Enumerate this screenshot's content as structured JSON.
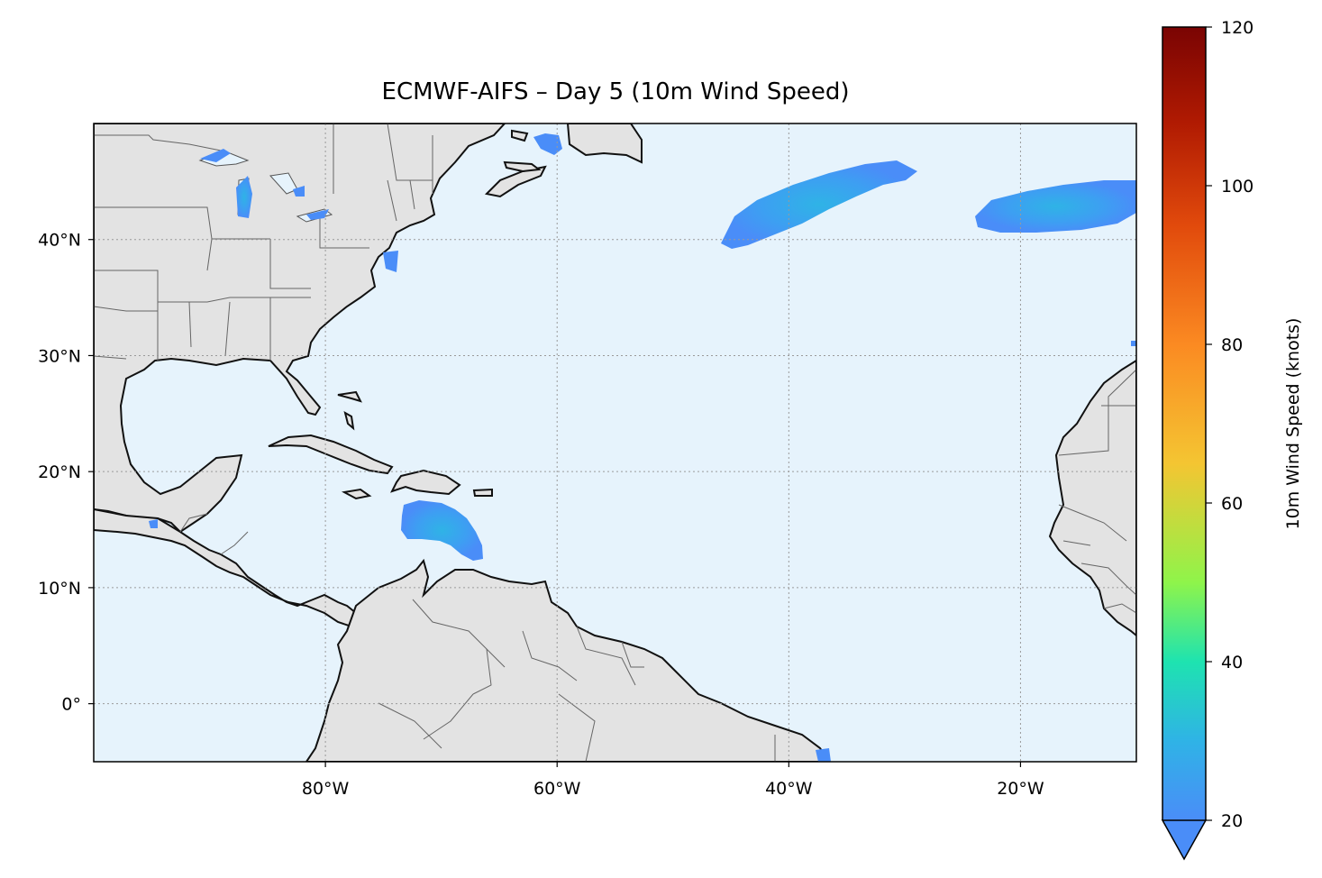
{
  "title": "ECMWF-AIFS – Day 5 (10m Wind Speed)",
  "map": {
    "lon_range": [
      -100,
      -10
    ],
    "lat_range": [
      -5,
      50
    ],
    "lon_ticks": [
      {
        "value": -80,
        "label": "80°W"
      },
      {
        "value": -60,
        "label": "60°W"
      },
      {
        "value": -40,
        "label": "40°W"
      },
      {
        "value": -20,
        "label": "20°W"
      }
    ],
    "lat_ticks": [
      {
        "value": 40,
        "label": "40°N"
      },
      {
        "value": 30,
        "label": "30°N"
      },
      {
        "value": 20,
        "label": "20°N"
      },
      {
        "value": 10,
        "label": "10°N"
      },
      {
        "value": 0,
        "label": "0°"
      }
    ],
    "gridlines": "dotted",
    "ocean_color": "#e6f3fc",
    "land_color": "#e3e3e3",
    "wind_features": [
      {
        "name": "caribbean-high-wind",
        "center": [
          -70,
          15
        ],
        "max_knots": 30
      },
      {
        "name": "central-atlantic-wind-band",
        "center": [
          -37,
          43
        ],
        "max_knots": 27
      },
      {
        "name": "eastern-atlantic-wind-band",
        "center": [
          -18,
          43.5
        ],
        "max_knots": 24
      },
      {
        "name": "gulf-of-st-lawrence-wind",
        "center": [
          -60,
          48.5
        ],
        "max_knots": 22
      },
      {
        "name": "great-lakes-wind",
        "center": [
          -87,
          44
        ],
        "max_knots": 25
      }
    ]
  },
  "colorbar": {
    "label": "10m Wind Speed (knots)",
    "min": 20,
    "max": 120,
    "ticks": [
      {
        "value": 20,
        "label": "20"
      },
      {
        "value": 40,
        "label": "40"
      },
      {
        "value": 60,
        "label": "60"
      },
      {
        "value": 80,
        "label": "80"
      },
      {
        "value": 100,
        "label": "100"
      },
      {
        "value": 120,
        "label": "120"
      }
    ],
    "extend": "min",
    "colormap": [
      "#4a8df8",
      "#2fb3e6",
      "#1ee3b0",
      "#8ff44a",
      "#f4c532",
      "#fb8a22",
      "#e14a0c",
      "#b01a02",
      "#7a0403"
    ]
  }
}
